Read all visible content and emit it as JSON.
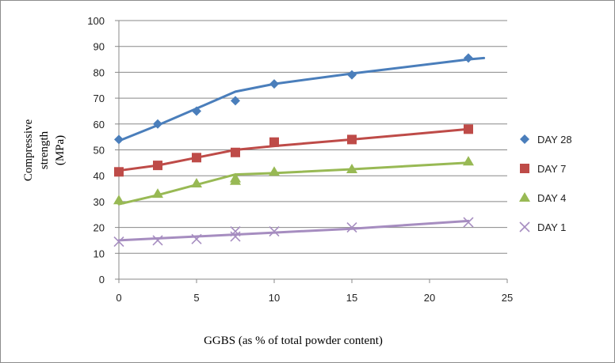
{
  "chart_data": {
    "type": "scatter",
    "title": "",
    "xlabel": "GGBS (as % of total powder content)",
    "ylabel_lines": [
      "Compressive",
      "strength",
      "(MPa)"
    ],
    "xlim": [
      0,
      25
    ],
    "ylim": [
      0,
      100
    ],
    "x_ticks": [
      0,
      5,
      10,
      15,
      20,
      25
    ],
    "y_ticks": [
      0,
      10,
      20,
      30,
      40,
      50,
      60,
      70,
      80,
      90,
      100
    ],
    "grid": "horizontal",
    "legend_position": "right",
    "series": [
      {
        "name": "DAY 28",
        "color": "#4a7ebb",
        "marker": "diamond",
        "x": [
          0,
          2.5,
          5,
          7.5,
          10,
          15,
          22.5
        ],
        "y": [
          54,
          60,
          65,
          69,
          75.5,
          79,
          85.5
        ],
        "trend": [
          [
            0,
            53.5
          ],
          [
            2.5,
            59.5
          ],
          [
            5,
            66
          ],
          [
            7.5,
            72.5
          ],
          [
            10,
            75.5
          ],
          [
            15,
            79.5
          ],
          [
            22.5,
            85
          ],
          [
            23.5,
            85.5
          ]
        ]
      },
      {
        "name": "DAY 7",
        "color": "#be4b48",
        "marker": "square",
        "x": [
          0,
          2.5,
          5,
          7.5,
          10,
          15,
          22.5
        ],
        "y": [
          41.5,
          44,
          47,
          49,
          53,
          54,
          58
        ],
        "trend": [
          [
            0,
            42
          ],
          [
            2.5,
            44
          ],
          [
            5,
            47
          ],
          [
            7.5,
            50
          ],
          [
            10,
            51.5
          ],
          [
            15,
            54
          ],
          [
            22.5,
            58
          ]
        ]
      },
      {
        "name": "DAY 4",
        "color": "#98b954",
        "marker": "triangle",
        "x": [
          0,
          2.5,
          5,
          7.5,
          7.5,
          10,
          15,
          22.5
        ],
        "y": [
          30.5,
          33,
          37,
          38,
          39,
          41.5,
          42.5,
          45.5
        ],
        "trend": [
          [
            0,
            29
          ],
          [
            2.5,
            32.5
          ],
          [
            5,
            36.5
          ],
          [
            7.5,
            40.5
          ],
          [
            10,
            41
          ],
          [
            15,
            42.5
          ],
          [
            22.5,
            45
          ]
        ]
      },
      {
        "name": "DAY 1",
        "color": "#a68dc0",
        "marker": "x",
        "x": [
          0,
          2.5,
          5,
          7.5,
          7.5,
          10,
          15,
          22.5
        ],
        "y": [
          14.5,
          15,
          15.5,
          16.5,
          18.5,
          18.5,
          20,
          22
        ],
        "trend": [
          [
            0,
            15
          ],
          [
            5,
            16.5
          ],
          [
            10,
            18
          ],
          [
            15,
            19.5
          ],
          [
            22.5,
            22.5
          ]
        ]
      }
    ]
  }
}
